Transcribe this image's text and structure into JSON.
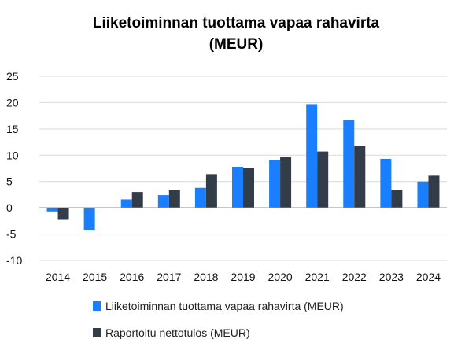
{
  "chart_data": {
    "type": "bar",
    "title_lines": [
      "Liiketoiminnan  tuottama vapaa rahavirta",
      "(MEUR)"
    ],
    "categories": [
      "2014",
      "2015",
      "2016",
      "2017",
      "2018",
      "2019",
      "2020",
      "2021",
      "2022",
      "2023",
      "2024"
    ],
    "series": [
      {
        "name": "Liiketoiminnan tuottama vapaa rahavirta (MEUR)",
        "color": "#1a7fff",
        "values": [
          -0.7,
          -4.3,
          1.6,
          2.4,
          3.8,
          7.8,
          9.0,
          19.7,
          16.7,
          9.3,
          5.0
        ]
      },
      {
        "name": "Raportoitu nettotulos (MEUR)",
        "color": "#333d4a",
        "values": [
          -2.3,
          0,
          3.0,
          3.4,
          6.4,
          7.6,
          9.6,
          10.7,
          11.8,
          3.4,
          6.1
        ]
      }
    ],
    "ylim": [
      -10,
      25
    ],
    "yticks": [
      25,
      20,
      15,
      10,
      5,
      0,
      -5,
      -10
    ],
    "ytick_labels": [
      "25",
      "20",
      "15",
      "10",
      "5",
      "0",
      "-5",
      "-10"
    ],
    "grid": true,
    "legend_position": "bottom"
  }
}
